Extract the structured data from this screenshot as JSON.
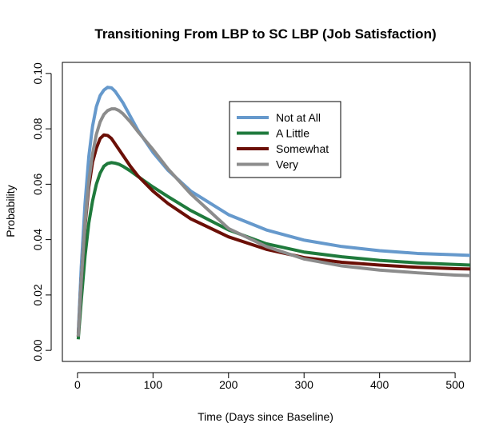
{
  "chart_data": {
    "type": "line",
    "title": "Transitioning From LBP to SC LBP (Job Satisfaction)",
    "xlabel": "Time (Days since Baseline)",
    "ylabel": "Probability",
    "xlim": [
      -20,
      520
    ],
    "ylim": [
      -0.004,
      0.104
    ],
    "xticks": [
      0,
      100,
      200,
      300,
      400,
      500
    ],
    "yticks": [
      0.0,
      0.02,
      0.04,
      0.06,
      0.08,
      0.1
    ],
    "xtick_labels": [
      "0",
      "100",
      "200",
      "300",
      "400",
      "500"
    ],
    "ytick_labels": [
      "0.00",
      "0.02",
      "0.04",
      "0.06",
      "0.08",
      "0.10"
    ],
    "legend_position": "top-center",
    "grid": false,
    "series": [
      {
        "name": "Not at All",
        "color": "#6699cc",
        "x": [
          1,
          5,
          10,
          15,
          20,
          25,
          30,
          35,
          40,
          45,
          50,
          60,
          70,
          80,
          100,
          120,
          150,
          200,
          250,
          300,
          350,
          400,
          450,
          500,
          520
        ],
        "y": [
          0.006,
          0.03,
          0.053,
          0.07,
          0.081,
          0.088,
          0.092,
          0.094,
          0.095,
          0.0948,
          0.0935,
          0.0895,
          0.0845,
          0.0795,
          0.0715,
          0.065,
          0.0575,
          0.049,
          0.0435,
          0.0398,
          0.0375,
          0.036,
          0.035,
          0.0345,
          0.0343
        ]
      },
      {
        "name": "A Little",
        "color": "#1f7a3c",
        "x": [
          1,
          5,
          10,
          15,
          20,
          25,
          30,
          35,
          40,
          45,
          50,
          55,
          60,
          70,
          80,
          100,
          120,
          150,
          200,
          250,
          300,
          350,
          400,
          450,
          500,
          520
        ],
        "y": [
          0.004,
          0.018,
          0.034,
          0.046,
          0.054,
          0.06,
          0.064,
          0.0665,
          0.0675,
          0.0678,
          0.0676,
          0.0672,
          0.0665,
          0.0648,
          0.0628,
          0.059,
          0.0555,
          0.0505,
          0.0435,
          0.0385,
          0.0355,
          0.0338,
          0.0325,
          0.0316,
          0.031,
          0.0308
        ]
      },
      {
        "name": "Somewhat",
        "color": "#6b0f06",
        "x": [
          1,
          5,
          10,
          15,
          20,
          25,
          30,
          35,
          40,
          45,
          50,
          60,
          70,
          80,
          100,
          120,
          150,
          200,
          250,
          300,
          350,
          400,
          450,
          500,
          520
        ],
        "y": [
          0.005,
          0.025,
          0.045,
          0.059,
          0.068,
          0.073,
          0.0765,
          0.0778,
          0.0776,
          0.0765,
          0.0745,
          0.0705,
          0.0665,
          0.063,
          0.0575,
          0.053,
          0.0475,
          0.041,
          0.0365,
          0.0335,
          0.0318,
          0.0308,
          0.03,
          0.0295,
          0.0294
        ]
      },
      {
        "name": "Very",
        "color": "#8c8c8c",
        "x": [
          1,
          5,
          10,
          15,
          20,
          25,
          30,
          35,
          40,
          45,
          50,
          55,
          60,
          70,
          80,
          100,
          120,
          150,
          200,
          250,
          300,
          350,
          400,
          450,
          500,
          520
        ],
        "y": [
          0.005,
          0.025,
          0.046,
          0.061,
          0.071,
          0.078,
          0.0825,
          0.0852,
          0.0866,
          0.0872,
          0.0872,
          0.0866,
          0.0855,
          0.0825,
          0.079,
          0.0725,
          0.0655,
          0.0565,
          0.044,
          0.0375,
          0.033,
          0.0305,
          0.029,
          0.028,
          0.0272,
          0.027
        ]
      }
    ]
  }
}
